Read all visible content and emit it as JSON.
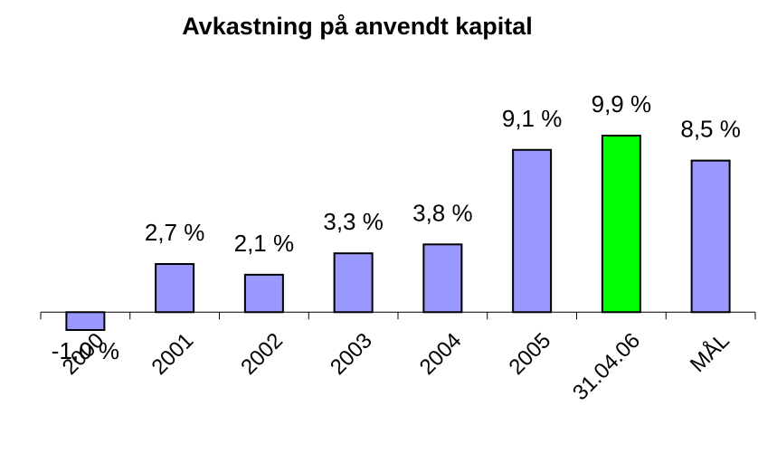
{
  "chart_data": {
    "type": "bar",
    "title": "Avkastning på anvendt kapital",
    "categories": [
      "2000",
      "2001",
      "2002",
      "2003",
      "2004",
      "2005",
      "31.04.06",
      "MÅL"
    ],
    "values": [
      -1.0,
      2.7,
      2.1,
      3.3,
      3.8,
      9.1,
      9.9,
      8.5
    ],
    "value_labels": [
      "-1,0 %",
      "2,7 %",
      "2,1 %",
      "3,3 %",
      "3,8 %",
      "9,1 %",
      "9,9 %",
      "8,5 %"
    ],
    "colors": [
      "#9999ff",
      "#9999ff",
      "#9999ff",
      "#9999ff",
      "#9999ff",
      "#9999ff",
      "#00ff00",
      "#9999ff"
    ]
  }
}
